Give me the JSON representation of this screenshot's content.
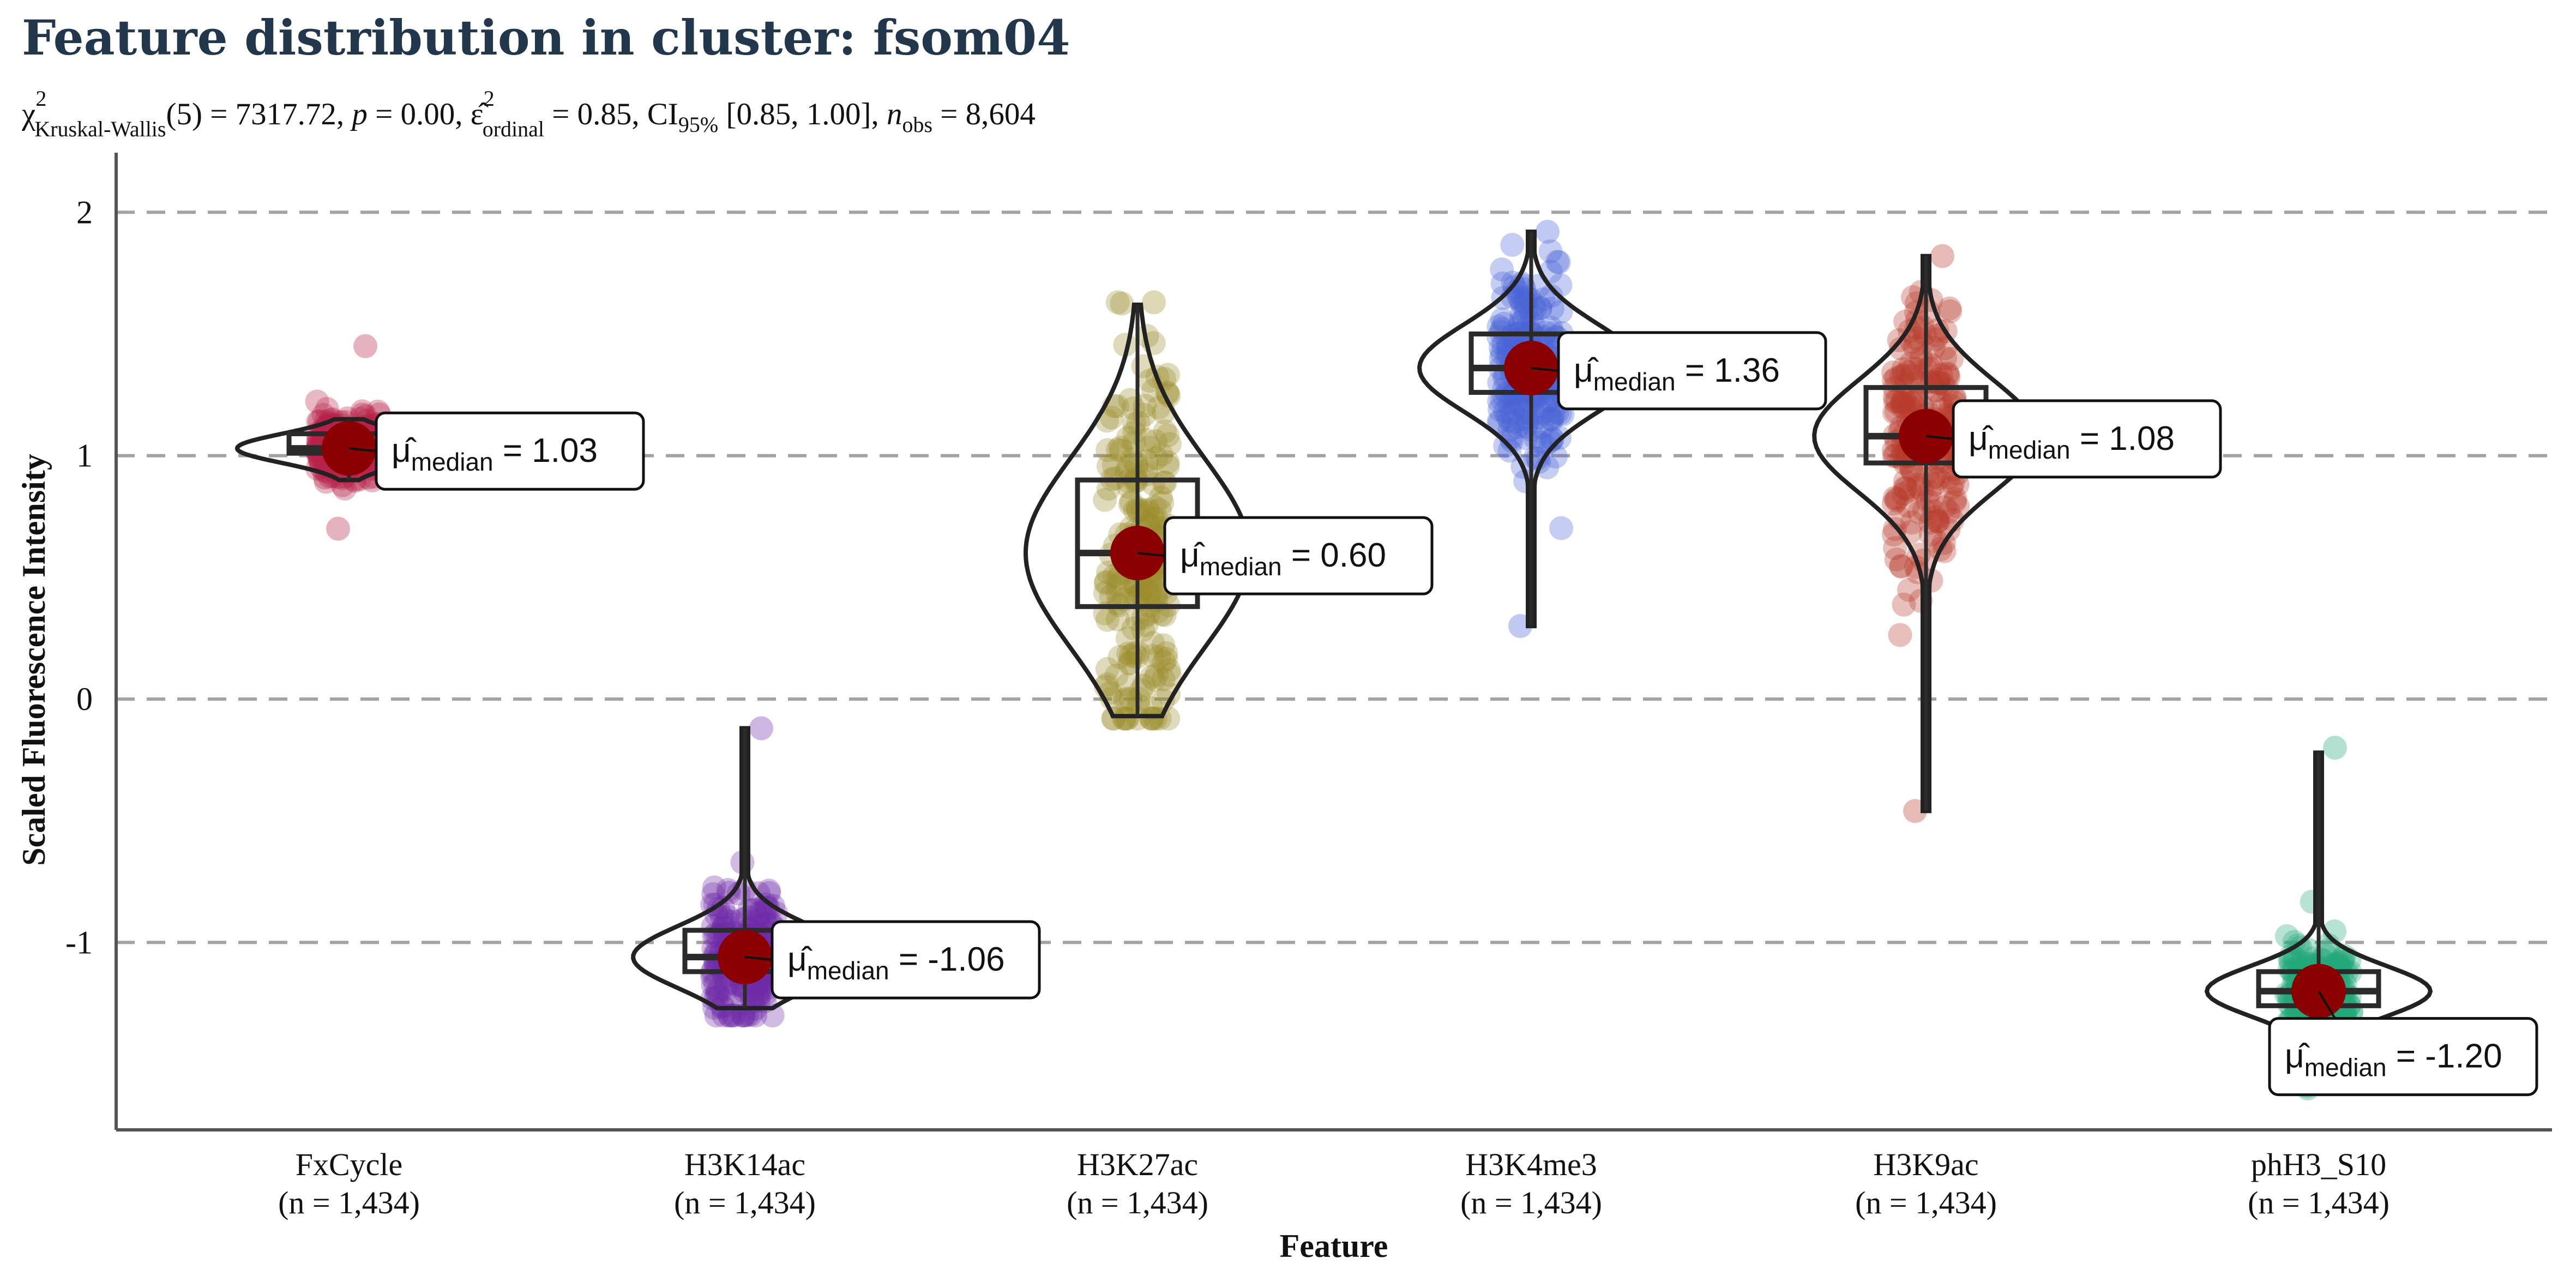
{
  "chart_data": {
    "type": "violin",
    "title": "Feature distribution in cluster: fsom04",
    "subtitle": {
      "chi2_label": "χ",
      "chi2_sup": "2",
      "chi2_sub": "Kruskal-Wallis",
      "stat_text": "(5) = 7317.72, ",
      "p_label": "p",
      "p_text": " = 0.00, ",
      "eps_label": "ε̂",
      "eps_sup": "2",
      "eps_sub": "ordinal",
      "eps_text": " = 0.85, CI",
      "ci_sub": "95%",
      "ci_text": " [0.85, 1.00], ",
      "n_label": "n",
      "n_sub": "obs",
      "n_text": " = 8,604"
    },
    "xlabel": "Feature",
    "ylabel": "Scaled Fluorescence Intensity",
    "ylim": [
      -1.77,
      2.2
    ],
    "y_ticks": [
      2,
      1,
      0,
      -1
    ],
    "y_tick_labels": [
      "2",
      "1",
      "0",
      "-1"
    ],
    "grid": "horizontal dashed",
    "median_label_prefix": "μ̂",
    "median_label_sub": "median",
    "categories": [
      {
        "name": "FxCycle",
        "n_label": "(n = 1,434)",
        "color": "#b8234a",
        "median": 1.03,
        "median_label": " = 1.03",
        "q1": 1.01,
        "q3": 1.09,
        "whisker_low": 0.9,
        "whisker_high": 1.15,
        "points_min": 0.7,
        "points_max": 1.45
      },
      {
        "name": "H3K14ac",
        "n_label": "(n = 1,434)",
        "color": "#6f2da8",
        "median": -1.06,
        "median_label": " = -1.06",
        "q1": -1.12,
        "q3": -0.95,
        "whisker_low": -1.27,
        "whisker_high": -0.12,
        "points_min": -1.3,
        "points_max": -0.12
      },
      {
        "name": "H3K27ac",
        "n_label": "(n = 1,434)",
        "color": "#9a8b2a",
        "median": 0.6,
        "median_label": " = 0.60",
        "q1": 0.38,
        "q3": 0.9,
        "whisker_low": -0.07,
        "whisker_high": 1.62,
        "points_min": -0.08,
        "points_max": 1.63
      },
      {
        "name": "H3K4me3",
        "n_label": "(n = 1,434)",
        "color": "#4a63d6",
        "median": 1.36,
        "median_label": " = 1.36",
        "q1": 1.26,
        "q3": 1.5,
        "whisker_low": 0.3,
        "whisker_high": 1.92,
        "points_min": 0.3,
        "points_max": 1.92
      },
      {
        "name": "H3K9ac",
        "n_label": "(n = 1,434)",
        "color": "#b83a2a",
        "median": 1.08,
        "median_label": " = 1.08",
        "q1": 0.97,
        "q3": 1.28,
        "whisker_low": -0.46,
        "whisker_high": 1.82,
        "points_min": -0.46,
        "points_max": 1.82
      },
      {
        "name": "phH3_S10",
        "n_label": "(n = 1,434)",
        "color": "#23a87a",
        "median": -1.2,
        "median_label": " = -1.20",
        "q1": -1.26,
        "q3": -1.12,
        "whisker_low": -1.6,
        "whisker_high": -0.22,
        "points_min": -1.6,
        "points_max": -0.2
      }
    ],
    "median_point_color": "#8b0000"
  }
}
